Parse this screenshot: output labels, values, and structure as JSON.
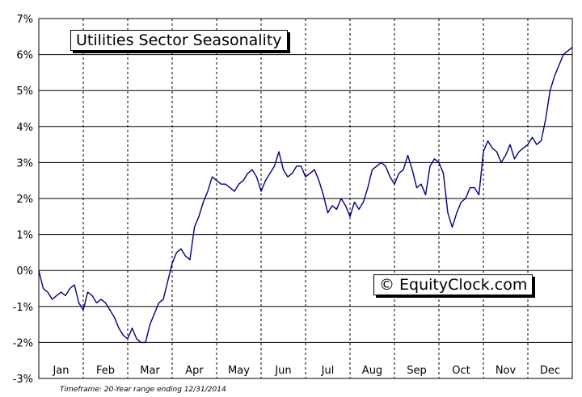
{
  "chart_data": {
    "type": "line",
    "title": "Utilities Sector Seasonality",
    "watermark": "© EquityClock.com",
    "footnote": "Timeframe: 20-Year range ending 12/31/2014",
    "ylim": [
      -3,
      7
    ],
    "yticks": [
      "7%",
      "6%",
      "5%",
      "4%",
      "3%",
      "2%",
      "1%",
      "0%",
      "-1%",
      "-2%",
      "-3%"
    ],
    "categories": [
      "Jan",
      "Feb",
      "Mar",
      "Apr",
      "May",
      "Jun",
      "Jul",
      "Aug",
      "Sep",
      "Oct",
      "Nov",
      "Dec"
    ],
    "grid": true,
    "line_color": "#000080",
    "series": [
      {
        "x": [
          0,
          0.1,
          0.2,
          0.3,
          0.4,
          0.5,
          0.6,
          0.7,
          0.8,
          0.9,
          1.0,
          1.1,
          1.2,
          1.3,
          1.4,
          1.5,
          1.6,
          1.7,
          1.8,
          1.9,
          2.0,
          2.1,
          2.2,
          2.3,
          2.4,
          2.5,
          2.6,
          2.7,
          2.8,
          2.9,
          3.0,
          3.1,
          3.2,
          3.3,
          3.4,
          3.5,
          3.6,
          3.7,
          3.8,
          3.9,
          4.0,
          4.1,
          4.2,
          4.3,
          4.4,
          4.5,
          4.6,
          4.7,
          4.8,
          4.9,
          5.0,
          5.1,
          5.2,
          5.3,
          5.4,
          5.5,
          5.6,
          5.7,
          5.8,
          5.9,
          6.0,
          6.1,
          6.2,
          6.3,
          6.4,
          6.5,
          6.6,
          6.7,
          6.8,
          6.9,
          7.0,
          7.1,
          7.2,
          7.3,
          7.4,
          7.5,
          7.6,
          7.7,
          7.8,
          7.9,
          8.0,
          8.1,
          8.2,
          8.3,
          8.4,
          8.5,
          8.6,
          8.7,
          8.8,
          8.9,
          9.0,
          9.1,
          9.2,
          9.3,
          9.4,
          9.5,
          9.6,
          9.7,
          9.8,
          9.9,
          10.0,
          10.1,
          10.2,
          10.3,
          10.4,
          10.5,
          10.6,
          10.7,
          10.8,
          10.9,
          11.0,
          11.1,
          11.2,
          11.3,
          11.4,
          11.5,
          11.6,
          11.7,
          11.8,
          11.9,
          12.0
        ],
        "values": [
          0.0,
          -0.5,
          -0.6,
          -0.8,
          -0.7,
          -0.6,
          -0.7,
          -0.5,
          -0.4,
          -0.9,
          -1.1,
          -0.6,
          -0.7,
          -0.9,
          -0.8,
          -0.9,
          -1.1,
          -1.3,
          -1.6,
          -1.8,
          -1.9,
          -1.6,
          -1.9,
          -2.0,
          -2.0,
          -1.5,
          -1.2,
          -0.9,
          -0.8,
          -0.3,
          0.2,
          0.5,
          0.6,
          0.4,
          0.3,
          1.2,
          1.5,
          1.9,
          2.2,
          2.6,
          2.5,
          2.4,
          2.4,
          2.3,
          2.2,
          2.4,
          2.5,
          2.7,
          2.8,
          2.6,
          2.2,
          2.5,
          2.7,
          2.9,
          3.3,
          2.8,
          2.6,
          2.7,
          2.9,
          2.9,
          2.6,
          2.7,
          2.8,
          2.5,
          2.1,
          1.6,
          1.8,
          1.7,
          2.0,
          1.8,
          1.5,
          1.9,
          1.7,
          1.9,
          2.3,
          2.8,
          2.9,
          3.0,
          2.9,
          2.6,
          2.4,
          2.7,
          2.8,
          3.2,
          2.8,
          2.3,
          2.4,
          2.1,
          2.9,
          3.1,
          3.0,
          2.7,
          1.6,
          1.2,
          1.6,
          1.9,
          2.0,
          2.3,
          2.3,
          2.1,
          3.3,
          3.6,
          3.4,
          3.3,
          3.0,
          3.2,
          3.5,
          3.1,
          3.3,
          3.4,
          3.5,
          3.7,
          3.5,
          3.6,
          4.2,
          5.0,
          5.4,
          5.7,
          6.0,
          6.1,
          6.2
        ]
      }
    ]
  }
}
